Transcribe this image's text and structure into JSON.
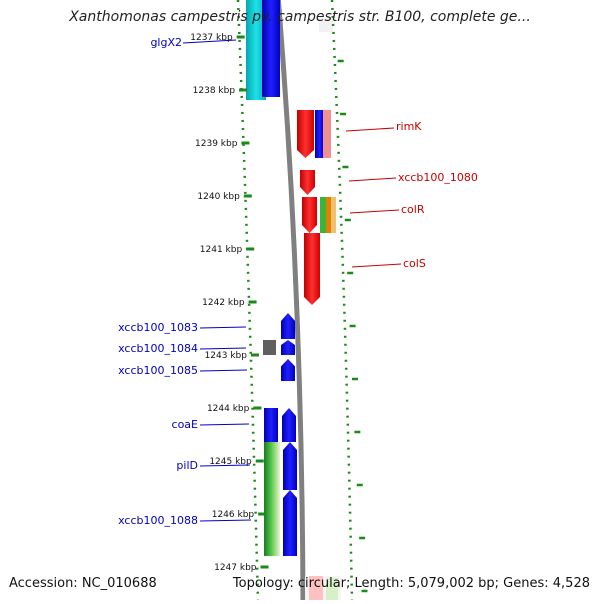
{
  "title": "Xanthomonas campestris pv. campestris str. B100, complete ge...",
  "footer": {
    "accession": "Accession: NC_010688",
    "topology": "Topology: circular; Length: 5,079,002 bp; Genes: 4,528"
  },
  "ruler_ticks": [
    {
      "label": "1237 kbp",
      "kbp": 1237
    },
    {
      "label": "1238 kbp",
      "kbp": 1238
    },
    {
      "label": "1239 kbp",
      "kbp": 1239
    },
    {
      "label": "1240 kbp",
      "kbp": 1240
    },
    {
      "label": "1241 kbp",
      "kbp": 1241
    },
    {
      "label": "1242 kbp",
      "kbp": 1242
    },
    {
      "label": "1243 kbp",
      "kbp": 1243
    },
    {
      "label": "1244 kbp",
      "kbp": 1244
    },
    {
      "label": "1245 kbp",
      "kbp": 1245
    },
    {
      "label": "1246 kbp",
      "kbp": 1246
    },
    {
      "label": "1247 kbp",
      "kbp": 1247
    }
  ],
  "gene_labels_left": [
    {
      "name": "glgX2",
      "color": "#0000c8"
    },
    {
      "name": "xccb100_1083",
      "color": "#0000c8"
    },
    {
      "name": "xccb100_1084",
      "color": "#0000c8"
    },
    {
      "name": "xccb100_1085",
      "color": "#0000c8"
    },
    {
      "name": "coaE",
      "color": "#0000c8"
    },
    {
      "name": "pilD",
      "color": "#0000c8"
    },
    {
      "name": "xccb100_1088",
      "color": "#0000c8"
    }
  ],
  "gene_labels_right": [
    {
      "name": "rimK",
      "color": "#c80000"
    },
    {
      "name": "xccb100_1080",
      "color": "#c80000"
    },
    {
      "name": "colR",
      "color": "#c80000"
    },
    {
      "name": "colS",
      "color": "#c80000"
    }
  ],
  "colors": {
    "ruler_dots": "#1a8a1a",
    "backbone": "#808080",
    "forward_strand": "#ff0000",
    "reverse_strand": "#0000ff",
    "glgX2_cyan": "#00c8c8",
    "grey_feature": "#606060",
    "green_feature": "#3cb43c"
  }
}
